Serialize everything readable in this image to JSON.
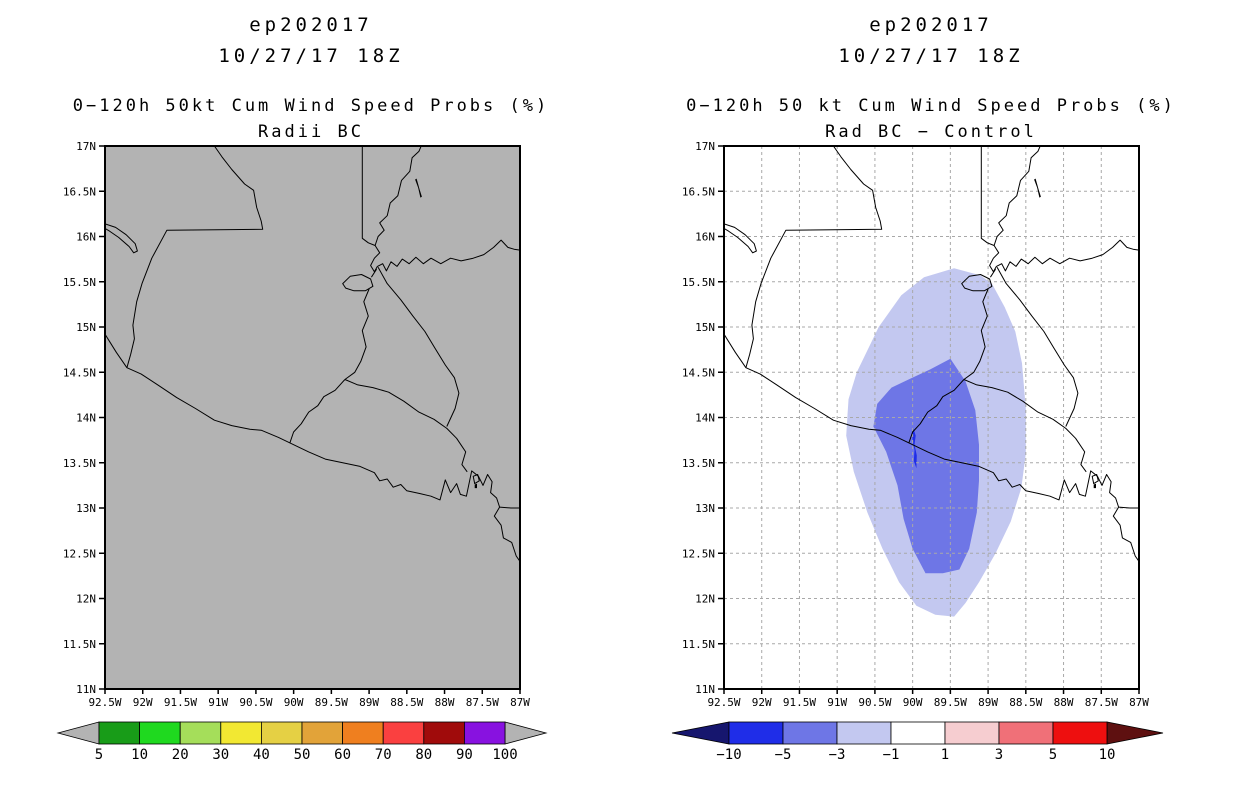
{
  "page": {
    "background": "#ffffff"
  },
  "panels": [
    {
      "storm_id": "ep202017",
      "init_time": "10/27/17 18Z",
      "product_title": "0−120h 50kt Cum Wind Speed Probs (%)",
      "model_label": "Radii BC",
      "map_background": "#b3b3b3",
      "show_gridlines": false,
      "shaded_regions": [],
      "colorbar": {
        "labels": [
          "5",
          "10",
          "20",
          "30",
          "40",
          "50",
          "60",
          "70",
          "80",
          "90",
          "100"
        ],
        "segment_colors": [
          "#189c18",
          "#1fd91f",
          "#a5de5a",
          "#f2e832",
          "#e5d044",
          "#e2a339",
          "#ef7f1f",
          "#fa4040",
          "#a00b0b",
          "#8812e0"
        ],
        "left_arrow_color": "#b3b3b3",
        "right_arrow_color": "#b3b3b3"
      }
    },
    {
      "storm_id": "ep202017",
      "init_time": "10/27/17 18Z",
      "product_title": "0−120h 50 kt Cum Wind Speed Probs (%)",
      "model_label": "Rad BC − Control",
      "map_background": "#ffffff",
      "show_gridlines": true,
      "gridline_color": "#a8a8a8",
      "shaded_regions": [
        {
          "name": "diff-band-minus3-to-minus1",
          "level": "-3 to -1",
          "color": "#c3c8f0",
          "points": [
            [
              89.45,
              15.65
            ],
            [
              89.1,
              15.57
            ],
            [
              88.95,
              15.48
            ],
            [
              88.78,
              15.22
            ],
            [
              88.64,
              14.95
            ],
            [
              88.55,
              14.6
            ],
            [
              88.5,
              14.1
            ],
            [
              88.5,
              13.6
            ],
            [
              88.56,
              13.22
            ],
            [
              88.7,
              12.85
            ],
            [
              88.9,
              12.5
            ],
            [
              89.12,
              12.18
            ],
            [
              89.3,
              11.95
            ],
            [
              89.45,
              11.8
            ],
            [
              89.7,
              11.82
            ],
            [
              89.95,
              11.92
            ],
            [
              90.18,
              12.18
            ],
            [
              90.4,
              12.55
            ],
            [
              90.6,
              12.95
            ],
            [
              90.78,
              13.4
            ],
            [
              90.88,
              13.8
            ],
            [
              90.85,
              14.2
            ],
            [
              90.74,
              14.5
            ],
            [
              90.45,
              15.0
            ],
            [
              90.15,
              15.35
            ],
            [
              89.85,
              15.55
            ]
          ]
        },
        {
          "name": "diff-band-minus5-to-minus3",
          "level": "-5 to -3",
          "color": "#6e76e6",
          "points": [
            [
              89.5,
              14.65
            ],
            [
              89.3,
              14.4
            ],
            [
              89.17,
              14.08
            ],
            [
              89.12,
              13.7
            ],
            [
              89.12,
              13.3
            ],
            [
              89.15,
              12.95
            ],
            [
              89.25,
              12.55
            ],
            [
              89.38,
              12.32
            ],
            [
              89.6,
              12.28
            ],
            [
              89.83,
              12.28
            ],
            [
              90.0,
              12.55
            ],
            [
              90.12,
              12.88
            ],
            [
              90.2,
              13.25
            ],
            [
              90.35,
              13.62
            ],
            [
              90.52,
              13.9
            ],
            [
              90.47,
              14.15
            ],
            [
              90.28,
              14.33
            ],
            [
              90.03,
              14.43
            ],
            [
              89.77,
              14.53
            ]
          ]
        },
        {
          "name": "diff-band-minus10-to-minus5",
          "level": "-10 to -5",
          "color": "#1f2de8",
          "points": [
            [
              89.99,
              13.88
            ],
            [
              89.96,
              13.8
            ],
            [
              89.975,
              13.7
            ],
            [
              89.945,
              13.58
            ],
            [
              89.95,
              13.44
            ],
            [
              89.985,
              13.52
            ],
            [
              89.975,
              13.64
            ],
            [
              90.0,
              13.74
            ],
            [
              90.005,
              13.82
            ]
          ]
        }
      ],
      "colorbar": {
        "labels": [
          "−10",
          "−5",
          "−3",
          "−1",
          "1",
          "3",
          "5",
          "10"
        ],
        "segment_colors": [
          "#1f2de8",
          "#6e76e6",
          "#c3c8f0",
          "#ffffff",
          "#f6cdd0",
          "#f07078",
          "#ee0f0f"
        ],
        "left_arrow_color": "#16166e",
        "right_arrow_color": "#5e1010"
      }
    }
  ],
  "axes": {
    "lat_labels": [
      "17N",
      "16.5N",
      "16N",
      "15.5N",
      "15N",
      "14.5N",
      "14N",
      "13.5N",
      "13N",
      "12.5N",
      "12N",
      "11.5N",
      "11N"
    ],
    "lon_labels": [
      "92.5W",
      "92W",
      "91.5W",
      "91W",
      "90.5W",
      "90W",
      "89.5W",
      "89W",
      "88.5W",
      "88W",
      "87.5W",
      "87W"
    ],
    "lon_west": 92.5,
    "lon_east": 87.0,
    "lat_north": 17.0,
    "lat_south": 11.0,
    "tick_interval_deg": 0.5
  },
  "geography": {
    "coastlines": [
      {
        "name": "mexico-guatemala-border",
        "closed": false,
        "points": [
          [
            91.05,
            17.0
          ],
          [
            90.95,
            16.88
          ],
          [
            90.82,
            16.74
          ],
          [
            90.65,
            16.58
          ],
          [
            90.53,
            16.51
          ],
          [
            90.49,
            16.32
          ],
          [
            90.43,
            16.17
          ],
          [
            90.41,
            16.08
          ],
          [
            91.68,
            16.07
          ],
          [
            91.88,
            15.76
          ],
          [
            92.01,
            15.48
          ],
          [
            92.08,
            15.28
          ],
          [
            92.13,
            15.02
          ],
          [
            92.11,
            14.87
          ],
          [
            92.16,
            14.7
          ],
          [
            92.21,
            14.55
          ]
        ]
      },
      {
        "name": "pacific-coastline",
        "closed": false,
        "points": [
          [
            92.5,
            14.92
          ],
          [
            92.35,
            14.72
          ],
          [
            92.21,
            14.55
          ],
          [
            92.02,
            14.48
          ],
          [
            91.8,
            14.36
          ],
          [
            91.55,
            14.22
          ],
          [
            91.3,
            14.1
          ],
          [
            91.05,
            13.97
          ],
          [
            90.82,
            13.91
          ],
          [
            90.58,
            13.87
          ],
          [
            90.43,
            13.86
          ],
          [
            90.2,
            13.78
          ],
          [
            90.0,
            13.7
          ],
          [
            89.8,
            13.62
          ],
          [
            89.58,
            13.54
          ],
          [
            89.35,
            13.5
          ],
          [
            89.12,
            13.46
          ],
          [
            88.93,
            13.39
          ],
          [
            88.86,
            13.3
          ],
          [
            88.76,
            13.32
          ],
          [
            88.68,
            13.23
          ],
          [
            88.58,
            13.26
          ],
          [
            88.5,
            13.19
          ],
          [
            88.33,
            13.16
          ],
          [
            88.18,
            13.13
          ],
          [
            88.06,
            13.09
          ],
          [
            87.99,
            13.31
          ],
          [
            87.92,
            13.17
          ],
          [
            87.84,
            13.27
          ],
          [
            87.79,
            13.15
          ],
          [
            87.71,
            13.13
          ],
          [
            87.64,
            13.41
          ],
          [
            87.55,
            13.35
          ],
          [
            87.49,
            13.25
          ],
          [
            87.43,
            13.37
          ],
          [
            87.37,
            13.29
          ],
          [
            87.39,
            13.17
          ],
          [
            87.31,
            13.11
          ],
          [
            87.27,
            13.01
          ],
          [
            87.34,
            12.91
          ],
          [
            87.25,
            12.81
          ],
          [
            87.22,
            12.67
          ],
          [
            87.11,
            12.62
          ],
          [
            87.05,
            12.47
          ],
          [
            87.0,
            12.41
          ]
        ]
      },
      {
        "name": "fonseca-east-coast",
        "closed": false,
        "points": [
          [
            87.27,
            13.01
          ],
          [
            87.12,
            13.0
          ],
          [
            87.0,
            13.0
          ]
        ]
      },
      {
        "name": "belize-guatemala-border",
        "closed": false,
        "points": [
          [
            89.09,
            17.0
          ],
          [
            89.09,
            15.98
          ],
          [
            89.01,
            15.93
          ],
          [
            88.92,
            15.9
          ]
        ]
      },
      {
        "name": "belize-coastline",
        "closed": false,
        "points": [
          [
            88.92,
            15.9
          ],
          [
            88.88,
            16.0
          ],
          [
            88.8,
            16.07
          ],
          [
            88.86,
            16.15
          ],
          [
            88.76,
            16.23
          ],
          [
            88.72,
            16.37
          ],
          [
            88.62,
            16.45
          ],
          [
            88.57,
            16.62
          ],
          [
            88.46,
            16.72
          ],
          [
            88.43,
            16.87
          ],
          [
            88.34,
            16.94
          ],
          [
            88.31,
            17.0
          ]
        ]
      },
      {
        "name": "gulf-of-honduras-coastline",
        "closed": false,
        "points": [
          [
            88.92,
            15.9
          ],
          [
            88.86,
            15.82
          ],
          [
            88.93,
            15.76
          ],
          [
            88.98,
            15.68
          ],
          [
            88.93,
            15.61
          ],
          [
            88.89,
            15.67
          ],
          [
            88.82,
            15.7
          ],
          [
            88.77,
            15.62
          ],
          [
            88.71,
            15.72
          ],
          [
            88.63,
            15.67
          ],
          [
            88.56,
            15.75
          ],
          [
            88.47,
            15.7
          ],
          [
            88.38,
            15.77
          ],
          [
            88.28,
            15.7
          ],
          [
            88.18,
            15.76
          ],
          [
            88.05,
            15.7
          ],
          [
            87.92,
            15.76
          ],
          [
            87.78,
            15.73
          ],
          [
            87.62,
            15.76
          ],
          [
            87.48,
            15.8
          ],
          [
            87.35,
            15.88
          ],
          [
            87.25,
            15.96
          ],
          [
            87.16,
            15.88
          ],
          [
            87.08,
            15.86
          ],
          [
            87.0,
            15.85
          ]
        ]
      },
      {
        "name": "lake-izabal",
        "closed": true,
        "points": [
          [
            89.35,
            15.48
          ],
          [
            89.25,
            15.56
          ],
          [
            89.1,
            15.58
          ],
          [
            88.98,
            15.53
          ],
          [
            88.95,
            15.45
          ],
          [
            89.05,
            15.4
          ],
          [
            89.2,
            15.4
          ],
          [
            89.31,
            15.43
          ]
        ]
      },
      {
        "name": "rio-dulce",
        "closed": false,
        "points": [
          [
            88.97,
            15.55
          ],
          [
            88.9,
            15.64
          ]
        ]
      },
      {
        "name": "guatemala-honduras-border",
        "closed": false,
        "points": [
          [
            89.0,
            15.42
          ],
          [
            89.07,
            15.28
          ],
          [
            89.01,
            15.12
          ],
          [
            89.09,
            14.96
          ],
          [
            89.04,
            14.78
          ],
          [
            89.11,
            14.62
          ],
          [
            89.19,
            14.5
          ],
          [
            89.32,
            14.42
          ]
        ]
      },
      {
        "name": "guatemala-elsalvador-border",
        "closed": false,
        "points": [
          [
            89.32,
            14.42
          ],
          [
            89.45,
            14.3
          ],
          [
            89.6,
            14.23
          ],
          [
            89.68,
            14.13
          ],
          [
            89.8,
            14.06
          ],
          [
            89.9,
            13.93
          ],
          [
            90.0,
            13.84
          ],
          [
            90.05,
            13.72
          ]
        ]
      },
      {
        "name": "elsalvador-honduras-border",
        "closed": false,
        "points": [
          [
            89.32,
            14.42
          ],
          [
            89.15,
            14.36
          ],
          [
            88.95,
            14.33
          ],
          [
            88.74,
            14.28
          ],
          [
            88.54,
            14.18
          ],
          [
            88.34,
            14.06
          ],
          [
            88.14,
            13.98
          ],
          [
            87.97,
            13.88
          ],
          [
            87.84,
            13.77
          ],
          [
            87.72,
            13.62
          ],
          [
            87.77,
            13.48
          ],
          [
            87.7,
            13.4
          ]
        ]
      },
      {
        "name": "motagua-valley-border",
        "closed": false,
        "points": [
          [
            88.88,
            15.66
          ],
          [
            88.76,
            15.48
          ],
          [
            88.58,
            15.3
          ],
          [
            88.42,
            15.12
          ],
          [
            88.26,
            14.95
          ],
          [
            88.13,
            14.77
          ],
          [
            87.99,
            14.58
          ],
          [
            87.87,
            14.44
          ],
          [
            87.81,
            14.27
          ],
          [
            87.86,
            14.1
          ],
          [
            87.97,
            13.9
          ]
        ]
      },
      {
        "name": "angostura-reservoir",
        "closed": false,
        "points": [
          [
            92.5,
            16.14
          ],
          [
            92.36,
            16.1
          ],
          [
            92.22,
            16.02
          ],
          [
            92.1,
            15.92
          ],
          [
            92.07,
            15.84
          ],
          [
            92.12,
            15.82
          ],
          [
            92.18,
            15.89
          ],
          [
            92.32,
            15.99
          ],
          [
            92.44,
            16.06
          ],
          [
            92.5,
            16.09
          ]
        ]
      },
      {
        "name": "fonseca-islet-outline",
        "closed": true,
        "points": [
          [
            87.62,
            13.35
          ],
          [
            87.56,
            13.37
          ],
          [
            87.54,
            13.3
          ],
          [
            87.6,
            13.27
          ]
        ]
      }
    ],
    "filled_features": [
      {
        "name": "belize-caye",
        "points": [
          [
            88.37,
            16.64
          ],
          [
            88.33,
            16.52
          ],
          [
            88.3,
            16.44
          ],
          [
            88.32,
            16.43
          ],
          [
            88.35,
            16.54
          ],
          [
            88.39,
            16.63
          ]
        ]
      },
      {
        "name": "fonseca-dot",
        "points": [
          [
            87.6,
            13.26
          ],
          [
            87.57,
            13.27
          ],
          [
            87.57,
            13.22
          ],
          [
            87.6,
            13.22
          ]
        ]
      }
    ]
  }
}
